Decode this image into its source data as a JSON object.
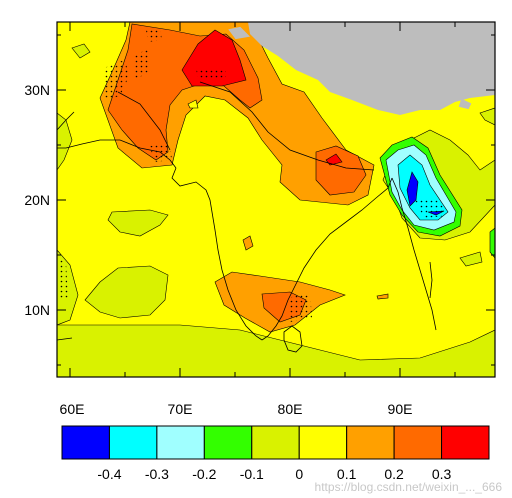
{
  "map": {
    "lat_labels": [
      "30N",
      "20N",
      "10N"
    ],
    "lon_labels": [
      "60E",
      "70E",
      "80E",
      "90E"
    ],
    "colors": {
      "land_gray": "#bdbdbd",
      "boundary": "#000000"
    }
  },
  "colorbar": {
    "levels": [
      "-0.4",
      "-0.3",
      "-0.2",
      "-0.1",
      "0",
      "0.1",
      "0.2",
      "0.3"
    ],
    "colors": [
      "#0000ff",
      "#00ffff",
      "#a0ffff",
      "#33ff00",
      "#d9f200",
      "#ffff00",
      "#ffa000",
      "#ff6a00",
      "#ff0000"
    ]
  },
  "watermark": "https://blog.csdn.net/weixin_..._666"
}
